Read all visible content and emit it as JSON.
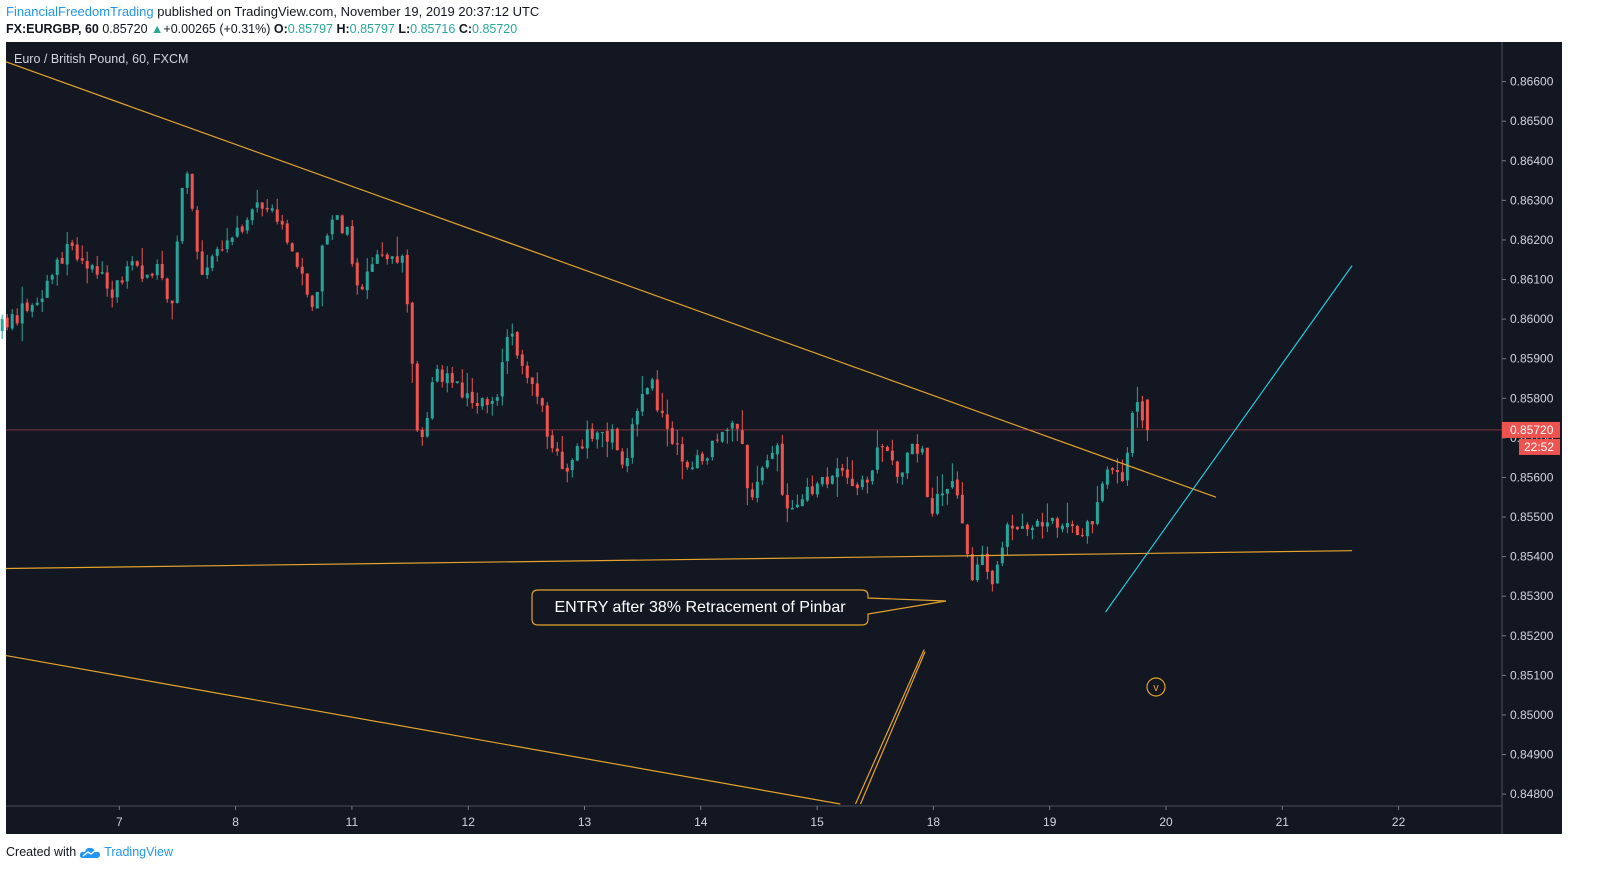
{
  "header": {
    "author": "FinancialFreedomTrading",
    "published": " published on TradingView.com, November 19, 2019 20:37:12 UTC",
    "symbol": "FX:EURGBP, 60",
    "last": "0.85720",
    "change": "+0.00265 (+0.31%)",
    "o_label": "O:",
    "o": "0.85797",
    "h_label": "H:",
    "h": "0.85797",
    "l_label": "L:",
    "l": "0.85716",
    "c_label": "C:",
    "c": "0.85720"
  },
  "footer": {
    "created_with": "Created with",
    "brand": "TradingView"
  },
  "colors": {
    "background": "#131722",
    "up": "#26a69a",
    "down": "#ef5350",
    "trendline": "#e3a22c",
    "cyan_line": "#22c7d9",
    "price_tag": "#ef5350"
  },
  "chart_data": {
    "type": "candlestick",
    "title": "Euro / British Pound, 60, FXCM",
    "y_axis_side": "right",
    "ylim": [
      0.8477,
      0.867
    ],
    "y_ticks": [
      "0.86600",
      "0.86500",
      "0.86400",
      "0.86300",
      "0.86200",
      "0.86100",
      "0.86000",
      "0.85900",
      "0.85800",
      "0.85700",
      "0.85600",
      "0.85500",
      "0.85400",
      "0.85300",
      "0.85200",
      "0.85100",
      "0.85000",
      "0.84900",
      "0.84800"
    ],
    "x_ticks": [
      {
        "label": "7",
        "day": 1
      },
      {
        "label": "8",
        "day": 2
      },
      {
        "label": "11",
        "day": 3
      },
      {
        "label": "12",
        "day": 4
      },
      {
        "label": "13",
        "day": 5
      },
      {
        "label": "14",
        "day": 6
      },
      {
        "label": "15",
        "day": 7
      },
      {
        "label": "18",
        "day": 8
      },
      {
        "label": "19",
        "day": 9
      },
      {
        "label": "20",
        "day": 10
      },
      {
        "label": "21",
        "day": 11
      },
      {
        "label": "22",
        "day": 12
      }
    ],
    "current_price": "0.85720",
    "countdown": "22:52",
    "annotation": "ENTRY after 38% Retracement of Pinbar",
    "anchors": [
      {
        "day": -0.05,
        "close": 0.8597
      },
      {
        "day": 0.3,
        "close": 0.8605
      },
      {
        "day": 0.55,
        "close": 0.8618
      },
      {
        "day": 0.8,
        "close": 0.8613
      },
      {
        "day": 0.95,
        "close": 0.8606
      },
      {
        "day": 1.08,
        "close": 0.8614
      },
      {
        "day": 1.2,
        "close": 0.861
      },
      {
        "day": 1.35,
        "close": 0.8612
      },
      {
        "day": 1.45,
        "close": 0.8603
      },
      {
        "day": 1.52,
        "close": 0.8625
      },
      {
        "day": 1.55,
        "close": 0.8638
      },
      {
        "day": 1.6,
        "close": 0.8637
      },
      {
        "day": 1.66,
        "close": 0.862
      },
      {
        "day": 1.72,
        "close": 0.861
      },
      {
        "day": 1.85,
        "close": 0.8618
      },
      {
        "day": 2.05,
        "close": 0.8624
      },
      {
        "day": 2.25,
        "close": 0.863
      },
      {
        "day": 2.45,
        "close": 0.862
      },
      {
        "day": 2.6,
        "close": 0.861
      },
      {
        "day": 2.68,
        "close": 0.86
      },
      {
        "day": 2.72,
        "close": 0.8614
      },
      {
        "day": 2.85,
        "close": 0.8628
      },
      {
        "day": 2.98,
        "close": 0.862
      },
      {
        "day": 3.05,
        "close": 0.8606
      },
      {
        "day": 3.25,
        "close": 0.8617
      },
      {
        "day": 3.45,
        "close": 0.8614
      },
      {
        "day": 3.48,
        "close": 0.86
      },
      {
        "day": 3.52,
        "close": 0.859
      },
      {
        "day": 3.57,
        "close": 0.857
      },
      {
        "day": 3.62,
        "close": 0.8568
      },
      {
        "day": 3.7,
        "close": 0.8586
      },
      {
        "day": 3.85,
        "close": 0.8585
      },
      {
        "day": 4.05,
        "close": 0.8578
      },
      {
        "day": 4.25,
        "close": 0.8582
      },
      {
        "day": 4.35,
        "close": 0.8597
      },
      {
        "day": 4.45,
        "close": 0.8587
      },
      {
        "day": 4.6,
        "close": 0.858
      },
      {
        "day": 4.72,
        "close": 0.8568
      },
      {
        "day": 4.82,
        "close": 0.8562
      },
      {
        "day": 5.0,
        "close": 0.857
      },
      {
        "day": 5.25,
        "close": 0.857
      },
      {
        "day": 5.35,
        "close": 0.8562
      },
      {
        "day": 5.45,
        "close": 0.8578
      },
      {
        "day": 5.58,
        "close": 0.8587
      },
      {
        "day": 5.62,
        "close": 0.8578
      },
      {
        "day": 5.75,
        "close": 0.8568
      },
      {
        "day": 5.9,
        "close": 0.8563
      },
      {
        "day": 6.1,
        "close": 0.8568
      },
      {
        "day": 6.25,
        "close": 0.8572
      },
      {
        "day": 6.35,
        "close": 0.857
      },
      {
        "day": 6.42,
        "close": 0.8555
      },
      {
        "day": 6.55,
        "close": 0.8564
      },
      {
        "day": 6.65,
        "close": 0.857
      },
      {
        "day": 6.72,
        "close": 0.8552
      },
      {
        "day": 6.85,
        "close": 0.8555
      },
      {
        "day": 7.0,
        "close": 0.8557
      },
      {
        "day": 7.15,
        "close": 0.8562
      },
      {
        "day": 7.3,
        "close": 0.8557
      },
      {
        "day": 7.45,
        "close": 0.856
      },
      {
        "day": 7.52,
        "close": 0.857
      },
      {
        "day": 7.62,
        "close": 0.8565
      },
      {
        "day": 7.72,
        "close": 0.856
      },
      {
        "day": 7.82,
        "close": 0.8568
      },
      {
        "day": 7.92,
        "close": 0.8565
      },
      {
        "day": 7.96,
        "close": 0.855
      },
      {
        "day": 8.05,
        "close": 0.8558
      },
      {
        "day": 8.2,
        "close": 0.8558
      },
      {
        "day": 8.27,
        "close": 0.8545
      },
      {
        "day": 8.33,
        "close": 0.8535
      },
      {
        "day": 8.42,
        "close": 0.854
      },
      {
        "day": 8.5,
        "close": 0.8532
      },
      {
        "day": 8.56,
        "close": 0.8537
      },
      {
        "day": 8.62,
        "close": 0.8547
      },
      {
        "day": 8.75,
        "close": 0.8549
      },
      {
        "day": 8.95,
        "close": 0.8548
      },
      {
        "day": 9.15,
        "close": 0.8549
      },
      {
        "day": 9.25,
        "close": 0.8546
      },
      {
        "day": 9.35,
        "close": 0.8547
      },
      {
        "day": 9.45,
        "close": 0.8559
      },
      {
        "day": 9.55,
        "close": 0.8562
      },
      {
        "day": 9.62,
        "close": 0.8558
      },
      {
        "day": 9.68,
        "close": 0.8568
      },
      {
        "day": 9.73,
        "close": 0.8578
      },
      {
        "day": 9.78,
        "close": 0.858
      },
      {
        "day": 9.82,
        "close": 0.8572
      }
    ],
    "drawings": [
      {
        "kind": "trendline",
        "from": {
          "day": -0.1,
          "price": 0.8665
        },
        "to": {
          "day": 10.43,
          "price": 0.8555
        }
      },
      {
        "kind": "trendline",
        "from": {
          "day": -0.1,
          "price": 0.8537
        },
        "to": {
          "day": 11.6,
          "price": 0.85415
        }
      },
      {
        "kind": "trendline",
        "from": {
          "day": -0.1,
          "price": 0.8515
        },
        "to": {
          "day": 7.2,
          "price": 0.84775
        }
      },
      {
        "kind": "cyan_line",
        "from": {
          "day": 9.48,
          "price": 0.8526
        },
        "to": {
          "day": 11.6,
          "price": 0.86135
        }
      },
      {
        "kind": "double_line",
        "from": {
          "day": 7.33,
          "price": 0.84775
        },
        "to": {
          "day": 7.92,
          "price": 0.85165
        }
      }
    ]
  }
}
